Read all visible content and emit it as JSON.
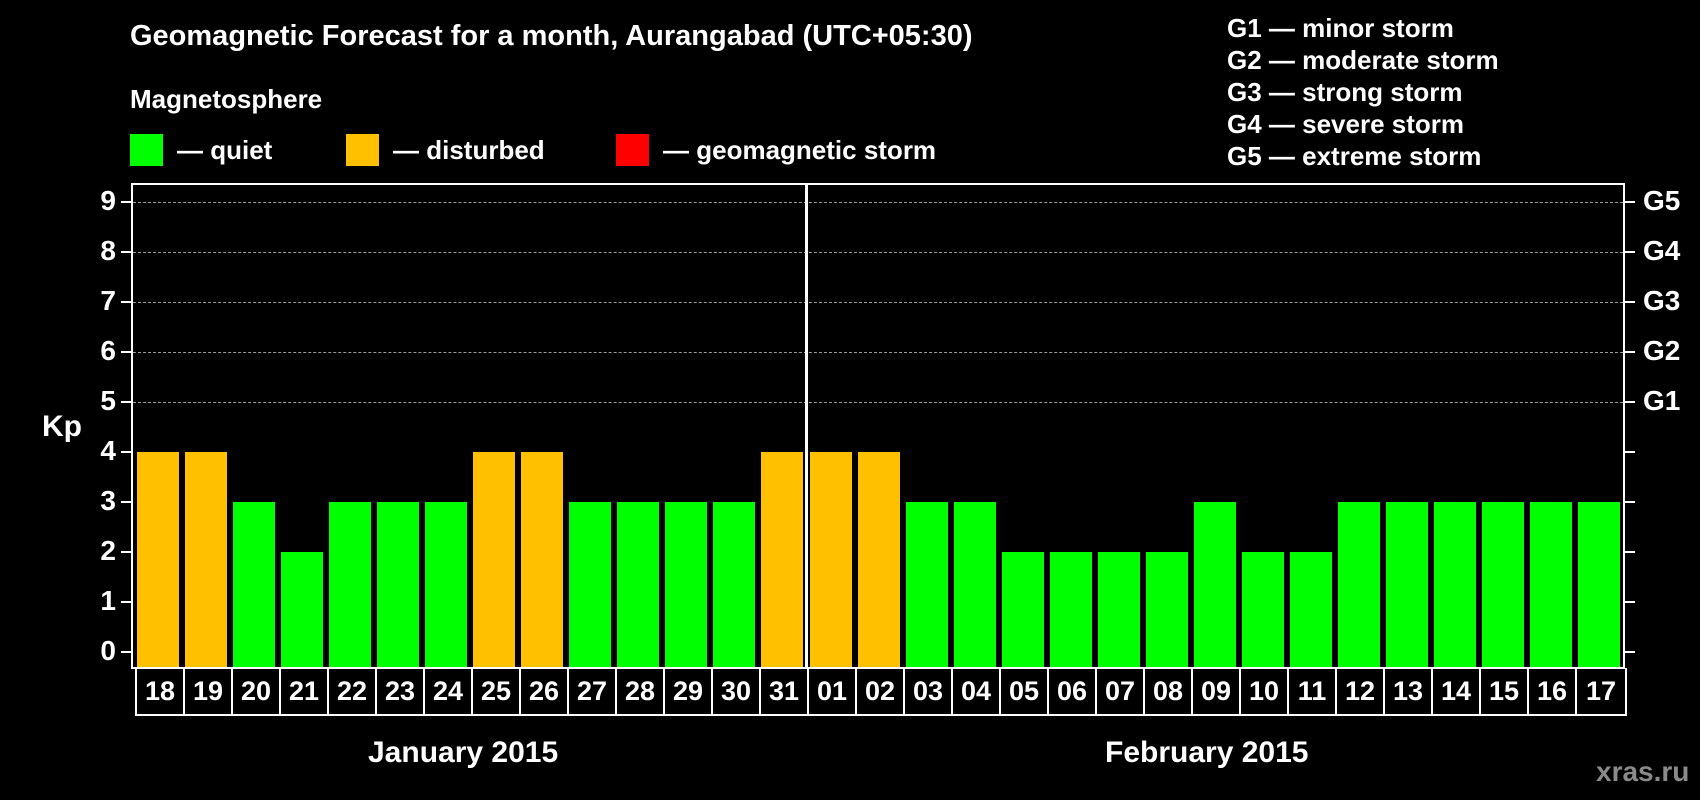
{
  "header": {
    "title": "Geomagnetic Forecast for a month, Aurangabad (UTC+05:30)",
    "magnetosphere_label": "Magnetosphere"
  },
  "legend": [
    {
      "label": "— quiet",
      "color": "#00ff00"
    },
    {
      "label": "— disturbed",
      "color": "#ffc000"
    },
    {
      "label": "— geomagnetic storm",
      "color": "#ff0000"
    }
  ],
  "storm_scale": [
    "G1 — minor storm",
    "G2 — moderate storm",
    "G3 — strong storm",
    "G4 — severe storm",
    "G5 — extreme storm"
  ],
  "axis": {
    "y_label": "Kp",
    "y_ticks": [
      "0",
      "1",
      "2",
      "3",
      "4",
      "5",
      "6",
      "7",
      "8",
      "9"
    ],
    "g_ticks": [
      {
        "kp": 5,
        "label": "G1"
      },
      {
        "kp": 6,
        "label": "G2"
      },
      {
        "kp": 7,
        "label": "G3"
      },
      {
        "kp": 8,
        "label": "G4"
      },
      {
        "kp": 9,
        "label": "G5"
      }
    ],
    "months": [
      "January 2015",
      "February 2015"
    ]
  },
  "watermark": "xras.ru",
  "chart_data": {
    "type": "bar",
    "title": "Geomagnetic Forecast for a month, Aurangabad (UTC+05:30)",
    "xlabel": "",
    "ylabel": "Kp",
    "ylim": [
      0,
      9
    ],
    "grid": true,
    "secondary_y_labels": {
      "5": "G1",
      "6": "G2",
      "7": "G3",
      "8": "G4",
      "9": "G5"
    },
    "categories": [
      "18",
      "19",
      "20",
      "21",
      "22",
      "23",
      "24",
      "25",
      "26",
      "27",
      "28",
      "29",
      "30",
      "31",
      "01",
      "02",
      "03",
      "04",
      "05",
      "06",
      "07",
      "08",
      "09",
      "10",
      "11",
      "12",
      "13",
      "14",
      "15",
      "16",
      "17"
    ],
    "month_groups": [
      {
        "label": "January 2015",
        "from": "18",
        "to": "31"
      },
      {
        "label": "February 2015",
        "from": "01",
        "to": "17"
      }
    ],
    "values": [
      4,
      4,
      3,
      2,
      3,
      3,
      3,
      4,
      4,
      3,
      3,
      3,
      3,
      4,
      4,
      4,
      3,
      3,
      2,
      2,
      2,
      2,
      3,
      2,
      2,
      3,
      3,
      3,
      3,
      3,
      3
    ],
    "status": [
      "disturbed",
      "disturbed",
      "quiet",
      "quiet",
      "quiet",
      "quiet",
      "quiet",
      "disturbed",
      "disturbed",
      "quiet",
      "quiet",
      "quiet",
      "quiet",
      "disturbed",
      "disturbed",
      "disturbed",
      "quiet",
      "quiet",
      "quiet",
      "quiet",
      "quiet",
      "quiet",
      "quiet",
      "quiet",
      "quiet",
      "quiet",
      "quiet",
      "quiet",
      "quiet",
      "quiet",
      "quiet"
    ],
    "legend": [
      "quiet",
      "disturbed",
      "geomagnetic storm"
    ],
    "colors": {
      "quiet": "#00ff00",
      "disturbed": "#ffc000",
      "geomagnetic storm": "#ff0000"
    }
  }
}
